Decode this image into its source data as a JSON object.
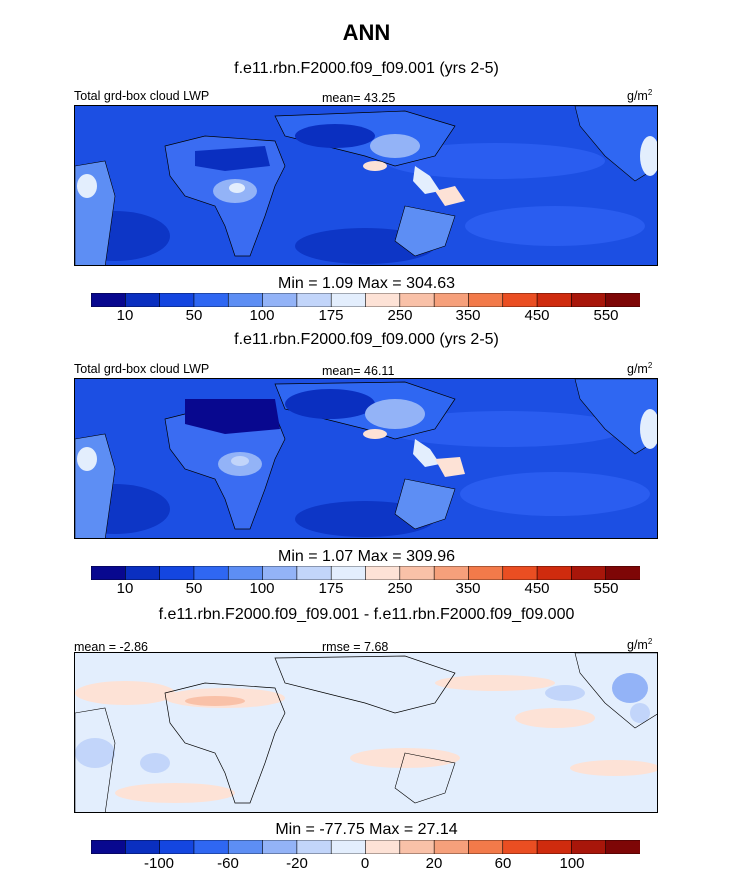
{
  "figure": {
    "title": "ANN"
  },
  "chart_data": [
    {
      "type": "heatmap",
      "title": "f.e11.rbn.F2000.f09_f09.001 (yrs 2-5)",
      "left_label": "Total grd-box cloud LWP",
      "center_label": "mean=  43.25",
      "units": "g/m",
      "units_sup": "2",
      "min_max": "Min =    1.09 Max = 304.63",
      "min": 1.09,
      "max": 304.63,
      "mean": 43.25,
      "colorbar": {
        "tick_labels": [
          "10",
          "50",
          "100",
          "175",
          "250",
          "350",
          "450",
          "550"
        ],
        "colors": [
          "#08088f",
          "#0a2fc0",
          "#1446e0",
          "#2f67f2",
          "#5d8ef4",
          "#93b3f7",
          "#c2d5fa",
          "#e3eefd",
          "#fde2d6",
          "#f9c1a8",
          "#f6a07b",
          "#f27a4a",
          "#ea4e22",
          "#cf2b0e",
          "#a8160a",
          "#7e0606"
        ]
      }
    },
    {
      "type": "heatmap",
      "title": "f.e11.rbn.F2000.f09_f09.000 (yrs 2-5)",
      "left_label": "Total grd-box cloud LWP",
      "center_label": "mean=  46.11",
      "units": "g/m",
      "units_sup": "2",
      "min_max": "Min =    1.07 Max = 309.96",
      "min": 1.07,
      "max": 309.96,
      "mean": 46.11,
      "colorbar": {
        "tick_labels": [
          "10",
          "50",
          "100",
          "175",
          "250",
          "350",
          "450",
          "550"
        ],
        "colors": [
          "#08088f",
          "#0a2fc0",
          "#1446e0",
          "#2f67f2",
          "#5d8ef4",
          "#93b3f7",
          "#c2d5fa",
          "#e3eefd",
          "#fde2d6",
          "#f9c1a8",
          "#f6a07b",
          "#f27a4a",
          "#ea4e22",
          "#cf2b0e",
          "#a8160a",
          "#7e0606"
        ]
      }
    },
    {
      "type": "heatmap",
      "title": "f.e11.rbn.F2000.f09_f09.001 - f.e11.rbn.F2000.f09_f09.000",
      "left_label": "mean =  -2.86",
      "center_label": "rmse =   7.68",
      "units": "g/m",
      "units_sup": "2",
      "min_max": "Min = -77.75 Max =  27.14",
      "min": -77.75,
      "max": 27.14,
      "mean": -2.86,
      "rmse": 7.68,
      "colorbar": {
        "tick_labels": [
          "-100",
          "-60",
          "-20",
          "0",
          "20",
          "60",
          "100"
        ],
        "colors": [
          "#08088f",
          "#0a2fc0",
          "#1446e0",
          "#2f67f2",
          "#5d8ef4",
          "#93b3f7",
          "#c2d5fa",
          "#e3eefd",
          "#fde2d6",
          "#f9c1a8",
          "#f6a07b",
          "#f27a4a",
          "#ea4e22",
          "#cf2b0e",
          "#a8160a",
          "#7e0606"
        ]
      }
    }
  ]
}
